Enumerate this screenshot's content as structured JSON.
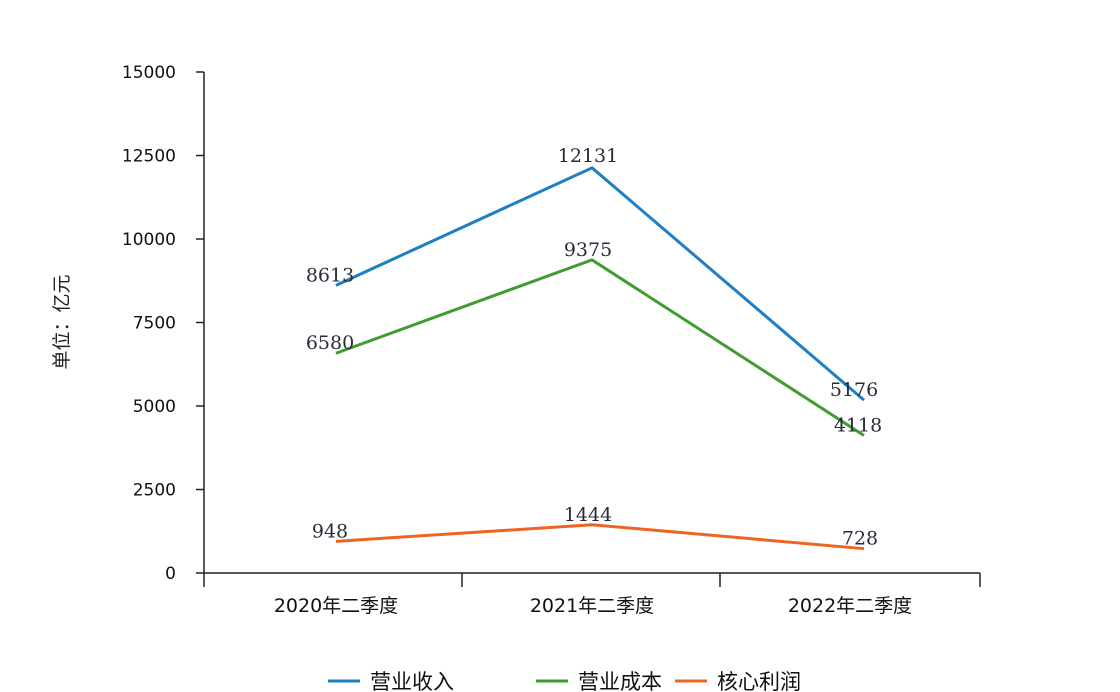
{
  "chart_data": {
    "type": "line",
    "title": "",
    "xlabel": "",
    "ylabel": "单位：亿元",
    "categories": [
      "2020年二季度",
      "2021年二季度",
      "2022年二季度"
    ],
    "ylim": [
      0,
      15000
    ],
    "yticks": [
      0,
      2500,
      5000,
      7500,
      10000,
      12500,
      15000
    ],
    "grid": false,
    "legend_position": "bottom",
    "series": [
      {
        "name": "营业收入",
        "color": "#1f7fc4",
        "values": [
          8613,
          12131,
          5176
        ]
      },
      {
        "name": "营业成本",
        "color": "#3f9c2f",
        "values": [
          6580,
          9375,
          4118
        ]
      },
      {
        "name": "核心利润",
        "color": "#ef6420",
        "values": [
          948,
          1444,
          728
        ]
      }
    ]
  }
}
